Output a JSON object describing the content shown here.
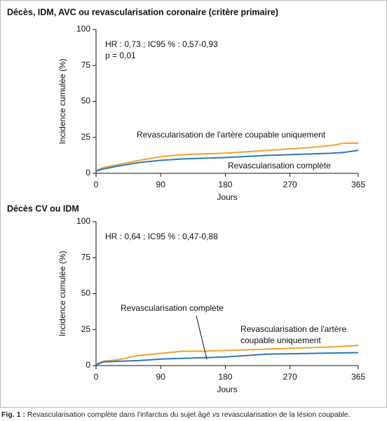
{
  "chart_data": [
    {
      "type": "line",
      "title": "Décès, IDM, AVC ou revascularisation coronaire (critère primaire)",
      "annotations": [
        "HR : 0,73 ; IC95 % : 0,57-0,93",
        "p = 0,01"
      ],
      "xlabel": "Jours",
      "ylabel": "Incidence cumulée (%)",
      "x": [
        0,
        10,
        30,
        60,
        90,
        120,
        180,
        240,
        300,
        330,
        345,
        365
      ],
      "series": [
        {
          "name": "Revascularisation de l'artère coupable uniquement",
          "color": "#f0a030",
          "values": [
            2,
            4,
            6,
            9,
            11.5,
            13,
            14,
            16,
            18,
            19.5,
            21,
            21
          ]
        },
        {
          "name": "Revascularisation complète",
          "color": "#2a7ab8",
          "values": [
            1.5,
            3,
            5,
            7.5,
            9,
            10,
            11,
            12.5,
            13.5,
            14,
            14.5,
            16
          ]
        }
      ],
      "xlim": [
        0,
        365
      ],
      "xticks": [
        0,
        90,
        180,
        270,
        365
      ],
      "ylim": [
        0,
        100
      ],
      "yticks": [
        0,
        25,
        50,
        75,
        100
      ]
    },
    {
      "type": "line",
      "title": "Décès CV ou IDM",
      "annotations": [
        "HR : 0,64 ; IC95 % : 0,47-0,88"
      ],
      "xlabel": "Jours",
      "ylabel": "Incidence cumulée (%)",
      "x": [
        0,
        10,
        30,
        60,
        90,
        120,
        150,
        180,
        240,
        270,
        300,
        330,
        365
      ],
      "series": [
        {
          "name": "Revascularisation de l'artère coupable uniquement",
          "color": "#f0a030",
          "values": [
            1,
            3,
            4,
            7,
            8.5,
            10,
            10,
            10.5,
            11.5,
            12,
            12.5,
            13,
            14
          ]
        },
        {
          "name": "Revascularisation complète",
          "color": "#2a7ab8",
          "values": [
            0.5,
            2.5,
            3,
            3.5,
            4.5,
            5,
            5.5,
            6,
            8,
            8.2,
            8.5,
            8.7,
            9
          ]
        }
      ],
      "xlim": [
        0,
        365
      ],
      "xticks": [
        0,
        90,
        180,
        270,
        365
      ],
      "ylim": [
        0,
        100
      ],
      "yticks": [
        0,
        25,
        50,
        75,
        100
      ]
    }
  ],
  "caption": {
    "label": "Fig. 1 :",
    "before": "Revascularisation complète dans l'infarctus du sujet âgé",
    "emphasis": "vs",
    "after": "revascularisation de la lésion coupable."
  }
}
